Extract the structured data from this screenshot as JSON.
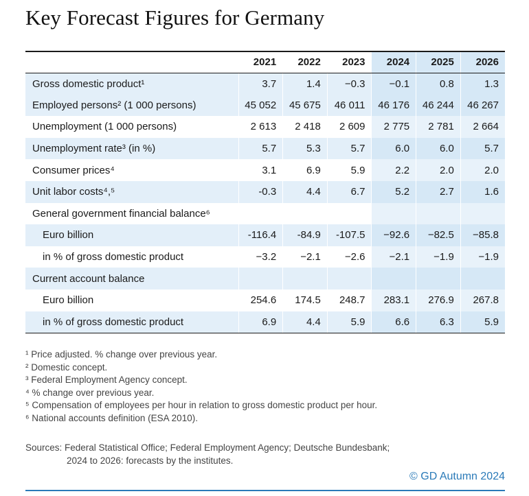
{
  "title": "Key Forecast Figures for Germany",
  "table": {
    "years": [
      "2021",
      "2022",
      "2023",
      "2024",
      "2025",
      "2026"
    ],
    "forecast_from": "2024",
    "rows": [
      {
        "label": "Gross domestic product¹",
        "values": [
          "3.7",
          "1.4",
          "−0.3",
          "−0.1",
          "0.8",
          "1.3"
        ],
        "indent": false,
        "shaded": true
      },
      {
        "label": "Employed persons² (1 000 persons)",
        "values": [
          "45 052",
          "45 675",
          "46 011",
          "46 176",
          "46 244",
          "46 267"
        ],
        "indent": false,
        "shaded": true
      },
      {
        "label": "Unemployment (1 000 persons)",
        "values": [
          "2 613",
          "2 418",
          "2 609",
          "2 775",
          "2 781",
          "2 664"
        ],
        "indent": false,
        "shaded": false
      },
      {
        "label": "Unemployment rate³ (in %)",
        "values": [
          "5.7",
          "5.3",
          "5.7",
          "6.0",
          "6.0",
          "5.7"
        ],
        "indent": false,
        "shaded": true
      },
      {
        "label": "Consumer prices⁴",
        "values": [
          "3.1",
          "6.9",
          "5.9",
          "2.2",
          "2.0",
          "2.0"
        ],
        "indent": false,
        "shaded": false
      },
      {
        "label": "Unit labor costs⁴,⁵",
        "values": [
          "-0.3",
          "4.4",
          "6.7",
          "5.2",
          "2.7",
          "1.6"
        ],
        "indent": false,
        "shaded": true
      },
      {
        "label": "General government financial balance⁶",
        "values": [
          "",
          "",
          "",
          "",
          "",
          ""
        ],
        "indent": false,
        "shaded": false
      },
      {
        "label": "Euro billion",
        "values": [
          "-116.4",
          "-84.9",
          "-107.5",
          "−92.6",
          "−82.5",
          "−85.8"
        ],
        "indent": true,
        "shaded": true
      },
      {
        "label": "in % of gross domestic product",
        "values": [
          "−3.2",
          "−2.1",
          "−2.6",
          "−2.1",
          "−1.9",
          "−1.9"
        ],
        "indent": true,
        "shaded": false
      },
      {
        "label": "Current account balance",
        "values": [
          "",
          "",
          "",
          "",
          "",
          ""
        ],
        "indent": false,
        "shaded": true
      },
      {
        "label": "Euro billion",
        "values": [
          "254.6",
          "174.5",
          "248.7",
          "283.1",
          "276.9",
          "267.8"
        ],
        "indent": true,
        "shaded": false
      },
      {
        "label": "in % of gross domestic product",
        "values": [
          "6.9",
          "4.4",
          "5.9",
          "6.6",
          "6.3",
          "5.9"
        ],
        "indent": true,
        "shaded": true
      }
    ]
  },
  "footnotes": [
    "¹ Price adjusted. % change over previous year.",
    "² Domestic concept.",
    "³ Federal Employment Agency concept.",
    "⁴ % change over previous year.",
    "⁵ Compensation of employees per hour in relation to gross domestic product per hour.",
    "⁶ National accounts definition (ESA 2010)."
  ],
  "sources": {
    "line1": "Sources: Federal Statistical Office; Federal Employment Agency; Deutsche Bundesbank;",
    "line2": "2024 to 2026: forecasts by the institutes."
  },
  "copyright": "© GD Autumn 2024",
  "colors": {
    "accent": "#2a7ab8",
    "row_shade": "#e3eff9",
    "forecast_shade": "#d6e8f6"
  }
}
